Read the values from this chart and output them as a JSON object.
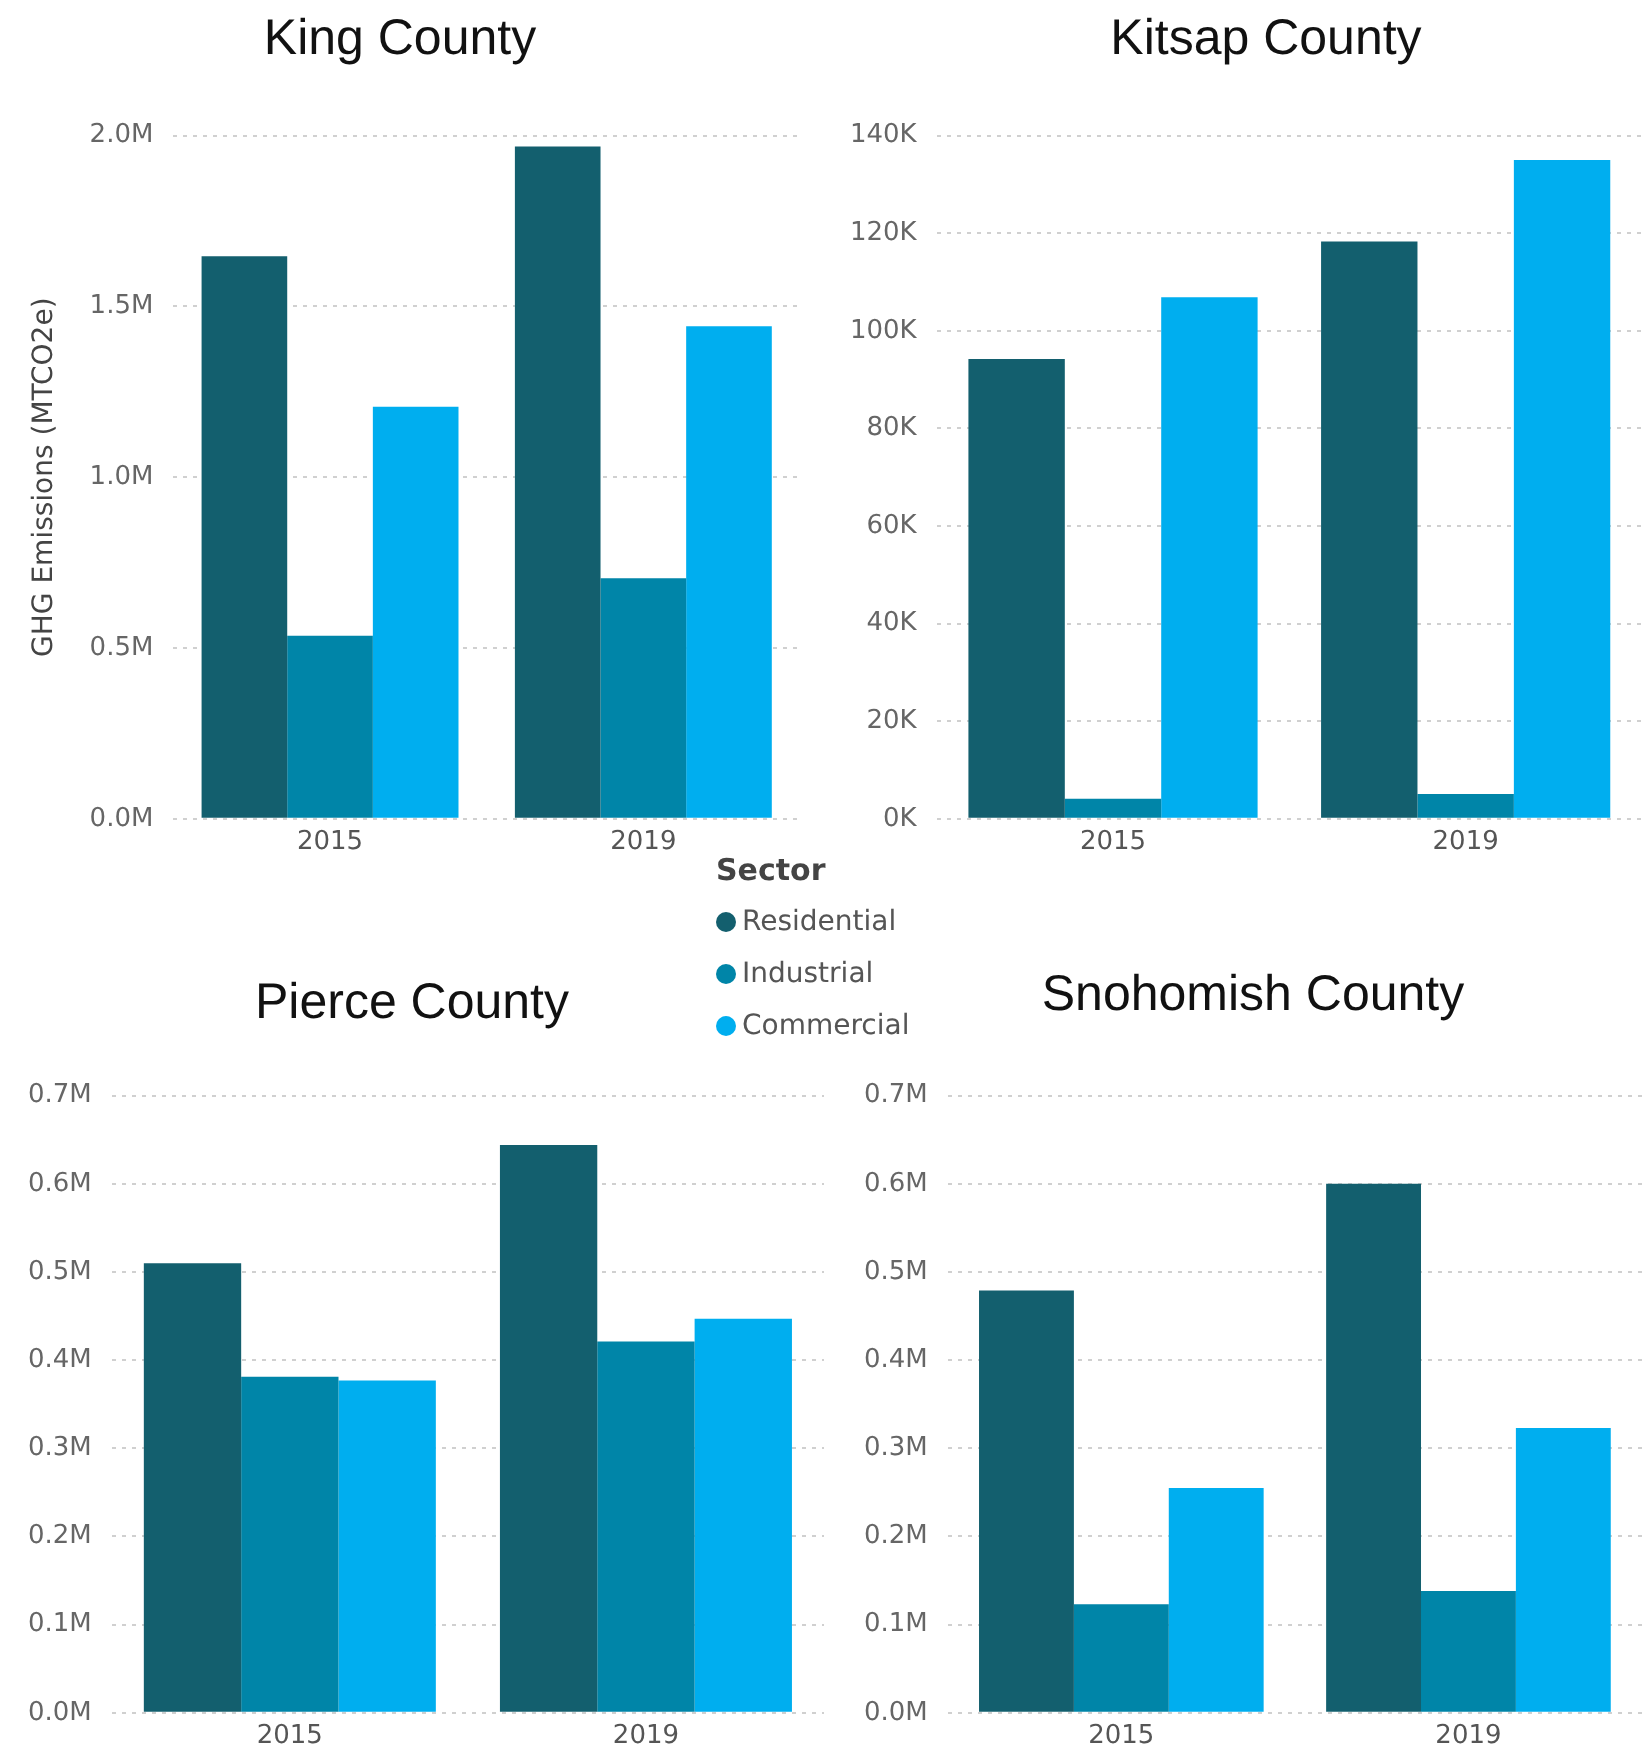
{
  "chart_data": [
    {
      "type": "bar",
      "title": "King County",
      "ylabel": "GHG Emissions (MTCO2e)",
      "categories": [
        "2015",
        "2019"
      ],
      "legend": "bottom right",
      "legend_title": "Sector",
      "grid": "y",
      "series": [
        {
          "name": "Residential",
          "color": "#135f6e",
          "values": [
            1647000,
            1968000
          ]
        },
        {
          "name": "Industrial",
          "color": "#0085a8",
          "values": [
            536000,
            704000
          ]
        },
        {
          "name": "Commercial",
          "color": "#00aeef",
          "values": [
            1206000,
            1442000
          ]
        }
      ],
      "ylim": [
        0,
        2000000
      ],
      "yticks": [
        {
          "value": 0,
          "label": "0.0M"
        },
        {
          "value": 500000,
          "label": "0.5M"
        },
        {
          "value": 1000000,
          "label": "1.0M"
        },
        {
          "value": 1500000,
          "label": "1.5M"
        },
        {
          "value": 2000000,
          "label": "2.0M"
        }
      ]
    },
    {
      "type": "bar",
      "title": "Kitsap County",
      "categories": [
        "2015",
        "2019"
      ],
      "grid": "y",
      "series": [
        {
          "color": "#135f6e",
          "values": [
            94200,
            118300
          ]
        },
        {
          "color": "#0085a8",
          "values": [
            4100,
            5100
          ]
        },
        {
          "color": "#00aeef",
          "values": [
            106900,
            135000
          ]
        }
      ],
      "ylim": [
        0,
        140000
      ],
      "yticks": [
        {
          "value": 0,
          "label": "0K"
        },
        {
          "value": 20000,
          "label": "20K"
        },
        {
          "value": 40000,
          "label": "40K"
        },
        {
          "value": 60000,
          "label": "60K"
        },
        {
          "value": 80000,
          "label": "80K"
        },
        {
          "value": 100000,
          "label": "100K"
        },
        {
          "value": 120000,
          "label": "120K"
        },
        {
          "value": 140000,
          "label": "140K"
        }
      ]
    },
    {
      "type": "bar",
      "title": "Pierce County",
      "categories": [
        "2015",
        "2019"
      ],
      "grid": "y",
      "series": [
        {
          "color": "#135f6e",
          "values": [
            510000,
            644000
          ]
        },
        {
          "color": "#0085a8",
          "values": [
            381000,
            421000
          ]
        },
        {
          "color": "#00aeef",
          "values": [
            377000,
            447000
          ]
        }
      ],
      "ylim": [
        0,
        700000
      ],
      "yticks": [
        {
          "value": 0,
          "label": "0.0M"
        },
        {
          "value": 100000,
          "label": "0.1M"
        },
        {
          "value": 200000,
          "label": "0.2M"
        },
        {
          "value": 300000,
          "label": "0.3M"
        },
        {
          "value": 400000,
          "label": "0.4M"
        },
        {
          "value": 500000,
          "label": "0.5M"
        },
        {
          "value": 600000,
          "label": "0.6M"
        },
        {
          "value": 700000,
          "label": "0.7M"
        }
      ]
    },
    {
      "type": "bar",
      "title": "Snohomish County",
      "categories": [
        "2015",
        "2019"
      ],
      "grid": "y",
      "series": [
        {
          "color": "#135f6e",
          "values": [
            479000,
            600000
          ]
        },
        {
          "color": "#0085a8",
          "values": [
            123000,
            138000
          ]
        },
        {
          "color": "#00aeef",
          "values": [
            255000,
            323000
          ]
        }
      ],
      "ylim": [
        0,
        700000
      ],
      "yticks": [
        {
          "value": 0,
          "label": "0.0M"
        },
        {
          "value": 100000,
          "label": "0.1M"
        },
        {
          "value": 200000,
          "label": "0.2M"
        },
        {
          "value": 300000,
          "label": "0.3M"
        },
        {
          "value": 400000,
          "label": "0.4M"
        },
        {
          "value": 500000,
          "label": "0.5M"
        },
        {
          "value": 600000,
          "label": "0.6M"
        },
        {
          "value": 700000,
          "label": "0.7M"
        }
      ]
    }
  ]
}
